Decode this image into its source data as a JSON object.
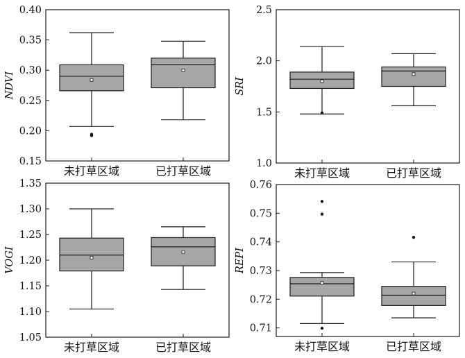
{
  "chart_data": [
    {
      "type": "box",
      "ylabel": "NDVI",
      "ylim": [
        0.15,
        0.4
      ],
      "yticks": [
        "0.15",
        "0.20",
        "0.25",
        "0.30",
        "0.35",
        "0.40"
      ],
      "categories": [
        "未打草区域",
        "已打草区域"
      ],
      "boxes": [
        {
          "whisker_low": 0.207,
          "q1": 0.266,
          "median": 0.29,
          "q3": 0.309,
          "whisker_high": 0.362,
          "mean": 0.284,
          "outliers": [
            0.194,
            0.192
          ]
        },
        {
          "whisker_low": 0.218,
          "q1": 0.271,
          "median": 0.309,
          "q3": 0.32,
          "whisker_high": 0.348,
          "mean": 0.3,
          "outliers": []
        }
      ]
    },
    {
      "type": "box",
      "ylabel": "SRI",
      "ylim": [
        1.0,
        2.5
      ],
      "yticks": [
        "1.0",
        "1.5",
        "2.0",
        "2.5"
      ],
      "categories": [
        "未打草区域",
        "已打草区域"
      ],
      "boxes": [
        {
          "whisker_low": 1.48,
          "q1": 1.73,
          "median": 1.82,
          "q3": 1.89,
          "whisker_high": 2.14,
          "mean": 1.8,
          "outliers": [
            1.49
          ]
        },
        {
          "whisker_low": 1.56,
          "q1": 1.75,
          "median": 1.9,
          "q3": 1.94,
          "whisker_high": 2.07,
          "mean": 1.87,
          "outliers": []
        }
      ]
    },
    {
      "type": "box",
      "ylabel": "VOGI",
      "ylim": [
        1.05,
        1.35
      ],
      "yticks": [
        "1.05",
        "1.10",
        "1.15",
        "1.20",
        "1.25",
        "1.30",
        "1.35"
      ],
      "categories": [
        "未打草区域",
        "已打草区域"
      ],
      "boxes": [
        {
          "whisker_low": 1.105,
          "q1": 1.179,
          "median": 1.21,
          "q3": 1.243,
          "whisker_high": 1.3,
          "mean": 1.205,
          "outliers": []
        },
        {
          "whisker_low": 1.143,
          "q1": 1.189,
          "median": 1.226,
          "q3": 1.244,
          "whisker_high": 1.265,
          "mean": 1.216,
          "outliers": []
        }
      ]
    },
    {
      "type": "box",
      "ylabel": "REPI",
      "ylim": [
        0.707,
        0.76
      ],
      "yticks": [
        "0.71",
        "0.72",
        "0.73",
        "0.74",
        "0.75",
        "0.76"
      ],
      "categories": [
        "未打草区域",
        "已打草区域"
      ],
      "boxes": [
        {
          "whisker_low": 0.7115,
          "q1": 0.7211,
          "median": 0.7254,
          "q3": 0.7276,
          "whisker_high": 0.7293,
          "mean": 0.7257,
          "outliers": [
            0.7541,
            0.7497,
            0.7099
          ]
        },
        {
          "whisker_low": 0.7135,
          "q1": 0.7178,
          "median": 0.7214,
          "q3": 0.7245,
          "whisker_high": 0.733,
          "mean": 0.722,
          "outliers": [
            0.7416
          ]
        }
      ]
    }
  ],
  "colors": {
    "box_fill": "#a6a6a6",
    "stroke": "#1a1a1a"
  }
}
